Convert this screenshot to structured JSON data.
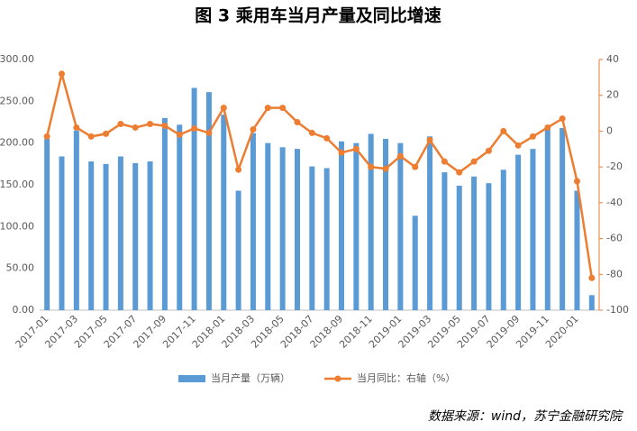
{
  "chart_data": {
    "type": "bar-line",
    "title": "图 3   乘用车当月产量及同比增速",
    "source": "数据来源：wind，苏宁金融研究院",
    "categories": [
      "2017-01",
      null,
      "2017-03",
      null,
      "2017-05",
      null,
      "2017-07",
      null,
      "2017-09",
      null,
      "2017-11",
      null,
      "2018-01",
      null,
      "2018-03",
      null,
      "2018-05",
      null,
      "2018-07",
      null,
      "2018-09",
      null,
      "2018-11",
      null,
      "2019-01",
      null,
      "2019-03",
      null,
      "2019-05",
      null,
      "2019-07",
      null,
      "2019-09",
      null,
      "2019-11",
      null,
      "2020-01",
      null
    ],
    "series": [
      {
        "name": "当月产量（万辆）",
        "type": "bar",
        "color": "#5b9bd5",
        "values": [
          205,
          184,
          215,
          178,
          175,
          184,
          176,
          178,
          230,
          222,
          266,
          261,
          234,
          143,
          212,
          200,
          195,
          193,
          172,
          170,
          202,
          200,
          211,
          205,
          200,
          113,
          208,
          165,
          149,
          160,
          152,
          168,
          186,
          193,
          218,
          218,
          143,
          18
        ]
      },
      {
        "name": "当月同比：右轴（%）",
        "type": "line",
        "axis": "y2",
        "color": "#ed7d31",
        "values": [
          -3,
          32,
          2,
          -3,
          -1.5,
          4,
          2,
          4,
          3,
          -2,
          1.5,
          -1,
          13,
          -21.5,
          1,
          13,
          13,
          5,
          -1,
          -4,
          -12,
          -10,
          -20,
          -21,
          -14,
          -20,
          -5,
          -17,
          -23,
          -17,
          -11,
          0,
          -8,
          -3,
          2,
          7,
          -28,
          -82
        ]
      }
    ],
    "ylim": [
      0,
      300
    ],
    "yticks": [
      {
        "value": 0,
        "label": "0.00"
      },
      {
        "value": 50,
        "label": "50.00"
      },
      {
        "value": 100,
        "label": "100.00"
      },
      {
        "value": 150,
        "label": "150.00"
      },
      {
        "value": 200,
        "label": "200.00"
      },
      {
        "value": 250,
        "label": "250.00"
      },
      {
        "value": 300,
        "label": "300.00"
      }
    ],
    "y2lim": [
      -100,
      40
    ],
    "y2ticks": [
      -100,
      -80,
      -60,
      -40,
      -20,
      0,
      20,
      40
    ],
    "legend": "bottom"
  }
}
